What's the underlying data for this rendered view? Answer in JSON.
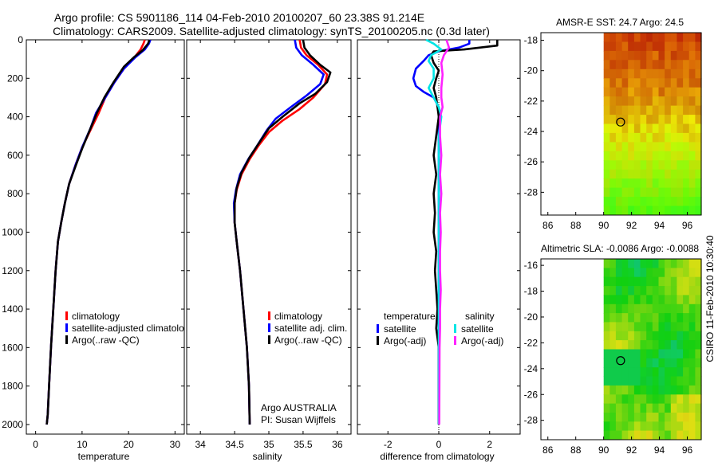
{
  "header": {
    "line1": "Argo profile: CS 5901186_114 04-Feb-2010 20100207_60 23.38S 91.214E",
    "line2": "Climatology: CARS2009. Satellite-adjusted climatology: synTS_20100205.nc (0.3d later)"
  },
  "colors": {
    "climatology": "#ff0000",
    "satellite": "#0000ff",
    "argo": "#000000",
    "sal_satellite": "#00e5e5",
    "sal_argo": "#ff22ff"
  },
  "chart_data": [
    {
      "type": "line",
      "panel": "temperature",
      "xlabel": "temperature",
      "ylabel": "",
      "xlim": [
        -2,
        32
      ],
      "ylim": [
        2050,
        0
      ],
      "x_ticks": [
        0,
        10,
        20,
        30
      ],
      "y_ticks": [
        0,
        200,
        400,
        600,
        800,
        1000,
        1200,
        1400,
        1600,
        1800,
        2000
      ],
      "legend": [
        "climatology",
        "satellite-adjusted climatology",
        "Argo(..raw -QC)"
      ],
      "legend_position": "lower-left",
      "series": [
        {
          "name": "climatology",
          "color": "#ff0000",
          "points": [
            [
              23.5,
              0
            ],
            [
              23.2,
              20
            ],
            [
              22.6,
              50
            ],
            [
              21,
              100
            ],
            [
              19,
              150
            ],
            [
              17,
              220
            ],
            [
              15,
              300
            ],
            [
              13.6,
              380
            ],
            [
              12,
              460
            ],
            [
              10,
              560
            ],
            [
              8.6,
              650
            ],
            [
              7.2,
              750
            ],
            [
              6.3,
              850
            ],
            [
              5.5,
              950
            ],
            [
              4.8,
              1050
            ],
            [
              4.3,
              1200
            ],
            [
              3.8,
              1400
            ],
            [
              3.3,
              1600
            ],
            [
              2.9,
              1800
            ],
            [
              2.6,
              1950
            ],
            [
              2.4,
              2000
            ]
          ]
        },
        {
          "name": "satellite-adjusted climatology",
          "color": "#0000ff",
          "points": [
            [
              24.7,
              0
            ],
            [
              24.4,
              20
            ],
            [
              23.5,
              50
            ],
            [
              21.5,
              90
            ],
            [
              19,
              150
            ],
            [
              17,
              220
            ],
            [
              15,
              300
            ],
            [
              13,
              380
            ],
            [
              11.8,
              460
            ],
            [
              10,
              560
            ],
            [
              8.6,
              650
            ],
            [
              7.2,
              750
            ],
            [
              6.3,
              850
            ],
            [
              5.5,
              950
            ],
            [
              4.8,
              1050
            ],
            [
              4.3,
              1200
            ],
            [
              3.8,
              1400
            ],
            [
              3.3,
              1600
            ],
            [
              2.9,
              1800
            ],
            [
              2.6,
              1950
            ],
            [
              2.4,
              2000
            ]
          ]
        },
        {
          "name": "Argo(..raw -QC)",
          "color": "#000000",
          "points": [
            [
              24.5,
              0
            ],
            [
              24.2,
              20
            ],
            [
              23,
              55
            ],
            [
              21.2,
              90
            ],
            [
              19,
              140
            ],
            [
              16.8,
              220
            ],
            [
              14.8,
              300
            ],
            [
              13.2,
              380
            ],
            [
              11.8,
              460
            ],
            [
              10.1,
              560
            ],
            [
              8.7,
              650
            ],
            [
              7.2,
              750
            ],
            [
              6.3,
              850
            ],
            [
              5.5,
              950
            ],
            [
              4.8,
              1050
            ],
            [
              4.3,
              1200
            ],
            [
              3.8,
              1400
            ],
            [
              3.3,
              1600
            ],
            [
              2.9,
              1800
            ],
            [
              2.6,
              1950
            ],
            [
              2.4,
              2000
            ]
          ]
        }
      ]
    },
    {
      "type": "line",
      "panel": "salinity",
      "xlabel": "salinity",
      "ylabel": "",
      "xlim": [
        33.8,
        36.2
      ],
      "ylim": [
        2050,
        0
      ],
      "x_ticks": [
        34,
        34.5,
        35,
        35.5,
        36
      ],
      "y_ticks": [
        0,
        200,
        400,
        600,
        800,
        1000,
        1200,
        1400,
        1600,
        1800,
        2000
      ],
      "legend": [
        "climatology",
        "satellite adj. clim.",
        "Argo(..raw -QC)"
      ],
      "legend_position": "lower-center",
      "annotation": [
        "Argo AUSTRALIA",
        "PI: Susan Wijffels"
      ],
      "series": [
        {
          "name": "climatology",
          "color": "#ff0000",
          "points": [
            [
              35.45,
              0
            ],
            [
              35.47,
              40
            ],
            [
              35.55,
              80
            ],
            [
              35.72,
              130
            ],
            [
              35.85,
              180
            ],
            [
              35.82,
              230
            ],
            [
              35.65,
              300
            ],
            [
              35.45,
              360
            ],
            [
              35.2,
              420
            ],
            [
              35.0,
              480
            ],
            [
              34.85,
              550
            ],
            [
              34.72,
              620
            ],
            [
              34.6,
              700
            ],
            [
              34.53,
              780
            ],
            [
              34.5,
              850
            ],
            [
              34.5,
              950
            ],
            [
              34.53,
              1050
            ],
            [
              34.58,
              1200
            ],
            [
              34.63,
              1400
            ],
            [
              34.68,
              1600
            ],
            [
              34.71,
              1800
            ],
            [
              34.72,
              2000
            ]
          ]
        },
        {
          "name": "satellite adj. clim.",
          "color": "#0000ff",
          "points": [
            [
              35.38,
              0
            ],
            [
              35.4,
              40
            ],
            [
              35.48,
              80
            ],
            [
              35.65,
              130
            ],
            [
              35.8,
              180
            ],
            [
              35.75,
              230
            ],
            [
              35.55,
              290
            ],
            [
              35.32,
              350
            ],
            [
              35.1,
              410
            ],
            [
              34.97,
              470
            ],
            [
              34.83,
              550
            ],
            [
              34.7,
              620
            ],
            [
              34.58,
              700
            ],
            [
              34.52,
              780
            ],
            [
              34.49,
              850
            ],
            [
              34.5,
              950
            ],
            [
              34.53,
              1050
            ],
            [
              34.58,
              1200
            ],
            [
              34.63,
              1400
            ],
            [
              34.68,
              1600
            ],
            [
              34.71,
              1800
            ],
            [
              34.72,
              2000
            ]
          ]
        },
        {
          "name": "Argo(..raw -QC)",
          "color": "#000000",
          "points": [
            [
              35.5,
              0
            ],
            [
              35.52,
              40
            ],
            [
              35.6,
              80
            ],
            [
              35.75,
              130
            ],
            [
              35.9,
              170
            ],
            [
              35.85,
              220
            ],
            [
              35.68,
              280
            ],
            [
              35.45,
              330
            ],
            [
              35.2,
              400
            ],
            [
              35.0,
              460
            ],
            [
              34.85,
              540
            ],
            [
              34.72,
              610
            ],
            [
              34.6,
              690
            ],
            [
              34.53,
              770
            ],
            [
              34.5,
              850
            ],
            [
              34.5,
              950
            ],
            [
              34.53,
              1050
            ],
            [
              34.58,
              1200
            ],
            [
              34.63,
              1400
            ],
            [
              34.68,
              1600
            ],
            [
              34.71,
              1800
            ],
            [
              34.72,
              2000
            ]
          ]
        }
      ]
    },
    {
      "type": "line",
      "panel": "difference",
      "xlabel": "difference from climatology",
      "ylabel": "",
      "xlim": [
        -3.2,
        3.2
      ],
      "ylim": [
        2050,
        0
      ],
      "x_ticks": [
        -2,
        0,
        2
      ],
      "y_ticks": [
        0,
        200,
        400,
        600,
        800,
        1000,
        1200,
        1400,
        1600,
        1800,
        2000
      ],
      "legend_groups": [
        {
          "title": "temperature",
          "items": [
            "satellite",
            "Argo(-adj)"
          ]
        },
        {
          "title": "salinity",
          "items": [
            "satellite",
            "Argo(-adj)"
          ]
        }
      ],
      "legend_position": "lower-center",
      "series": [
        {
          "name": "temperature satellite",
          "color": "#0000ff",
          "points": [
            [
              1.2,
              0
            ],
            [
              1.2,
              20
            ],
            [
              0.8,
              40
            ],
            [
              0,
              60
            ],
            [
              -0.4,
              80
            ],
            [
              -0.6,
              110
            ],
            [
              -0.9,
              150
            ],
            [
              -1,
              200
            ],
            [
              -0.9,
              240
            ],
            [
              -0.6,
              270
            ],
            [
              -0.2,
              300
            ],
            [
              0,
              350
            ],
            [
              0,
              500
            ],
            [
              0,
              2000
            ]
          ]
        },
        {
          "name": "temperature Argo(-adj)",
          "color": "#000000",
          "points": [
            [
              2.3,
              0
            ],
            [
              2.3,
              30
            ],
            [
              1,
              50
            ],
            [
              -0.2,
              60
            ],
            [
              -0.3,
              80
            ],
            [
              -0.2,
              120
            ],
            [
              0,
              160
            ],
            [
              -0.1,
              200
            ],
            [
              -0.2,
              250
            ],
            [
              -0.1,
              300
            ],
            [
              0,
              400
            ],
            [
              -0.1,
              500
            ],
            [
              -0.2,
              600
            ],
            [
              -0.1,
              700
            ],
            [
              -0.2,
              800
            ],
            [
              -0.15,
              900
            ],
            [
              -0.2,
              1000
            ],
            [
              -0.1,
              1100
            ],
            [
              -0.15,
              1200
            ],
            [
              -0.1,
              1300
            ],
            [
              -0.05,
              1400
            ],
            [
              -0.1,
              1500
            ],
            [
              0,
              1600
            ],
            [
              0,
              2000
            ]
          ]
        },
        {
          "name": "salinity satellite",
          "color": "#00e5e5",
          "points": [
            [
              -0.5,
              0
            ],
            [
              -0.2,
              20
            ],
            [
              0.1,
              50
            ],
            [
              -0.3,
              80
            ],
            [
              -0.4,
              110
            ],
            [
              -0.2,
              150
            ],
            [
              -0.2,
              200
            ],
            [
              -0.4,
              250
            ],
            [
              -0.2,
              300
            ],
            [
              0,
              350
            ],
            [
              0.1,
              400
            ],
            [
              0,
              500
            ],
            [
              0,
              600
            ],
            [
              0,
              2000
            ]
          ]
        },
        {
          "name": "salinity Argo(-adj)",
          "color": "#ff22ff",
          "points": [
            [
              0.3,
              0
            ],
            [
              0.4,
              40
            ],
            [
              0.2,
              80
            ],
            [
              0.1,
              120
            ],
            [
              0.15,
              180
            ],
            [
              0.1,
              250
            ],
            [
              0.1,
              300
            ],
            [
              0.15,
              350
            ],
            [
              0.05,
              400
            ],
            [
              0.05,
              500
            ],
            [
              0.1,
              600
            ],
            [
              0.05,
              700
            ],
            [
              0.1,
              800
            ],
            [
              0.05,
              900
            ],
            [
              0.08,
              1000
            ],
            [
              0.05,
              1100
            ],
            [
              0.05,
              1200
            ],
            [
              0.08,
              1300
            ],
            [
              0.05,
              1400
            ],
            [
              0.05,
              1500
            ],
            [
              0.03,
              1600
            ],
            [
              0.02,
              2000
            ]
          ]
        }
      ]
    },
    {
      "type": "heatmap",
      "panel": "sst_map",
      "title": "AMSR-E SST: 24.7 Argo: 24.5",
      "xlim": [
        85.5,
        97
      ],
      "ylim": [
        -29.5,
        -17.5
      ],
      "x_ticks": [
        86,
        88,
        90,
        92,
        94,
        96
      ],
      "y_ticks": [
        -18,
        -20,
        -22,
        -24,
        -26,
        -28
      ],
      "data_lon_start": 90,
      "marker": {
        "lon": 91.214,
        "lat": -23.38
      },
      "palette": "warm"
    },
    {
      "type": "heatmap",
      "panel": "sla_map",
      "title": "Altimetric SLA: -0.0086 Argo: -0.0088",
      "xlim": [
        85.5,
        97
      ],
      "ylim": [
        -29.5,
        -15.5
      ],
      "x_ticks": [
        86,
        88,
        90,
        92,
        94,
        96
      ],
      "y_ticks": [
        -16,
        -18,
        -20,
        -22,
        -24,
        -26,
        -28
      ],
      "data_lon_start": 90,
      "marker": {
        "lon": 91.214,
        "lat": -23.38
      },
      "palette": "cool"
    }
  ],
  "footer": {
    "credit": "CSIRO 11-Feb-2010 10:30:40"
  }
}
